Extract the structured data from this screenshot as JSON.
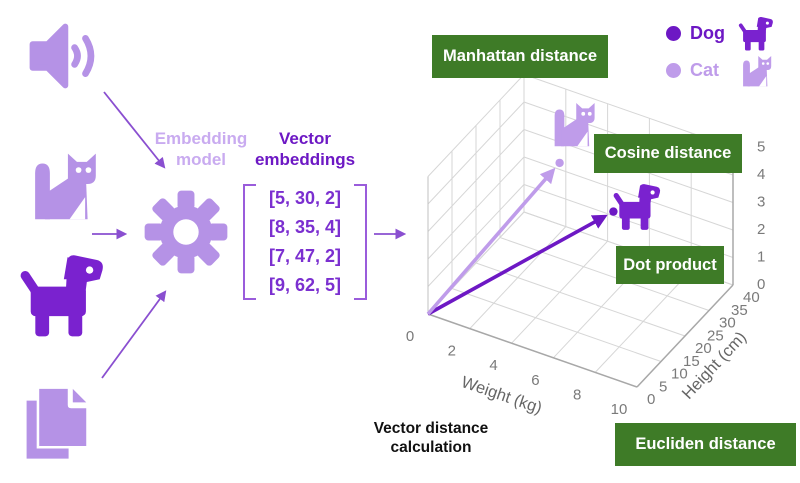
{
  "title": "Vector distance calculation",
  "pipeline": {
    "inputs": [
      {
        "name": "audio",
        "icon": "speaker-icon"
      },
      {
        "name": "cat",
        "icon": "cat-icon"
      },
      {
        "name": "dog",
        "icon": "dog-icon"
      },
      {
        "name": "documents",
        "icon": "documents-icon"
      }
    ],
    "embedding_model_label": "Embedding model",
    "embedding_model_icon": "gear-icon",
    "vector_embeddings_label": "Vector embeddings",
    "vectors": [
      "[5, 30, 2]",
      "[8, 35, 4]",
      "[7, 47, 2]",
      "[9, 62, 5]"
    ]
  },
  "distance_boxes": {
    "manhattan": "Manhattan distance",
    "cosine": "Cosine distance",
    "dot": "Dot product",
    "euclidean": "Eucliden distance"
  },
  "legend": [
    {
      "label": "Dog",
      "color": "#6d18c4",
      "icon": "dog-icon"
    },
    {
      "label": "Cat",
      "color": "#bf9cea",
      "icon": "cat-icon"
    }
  ],
  "chart_data": {
    "type": "scatter",
    "title": "",
    "xlabel": "Weight (kg)",
    "ylabel": "Height (cm)",
    "zlabel": "",
    "xlim": [
      0,
      10
    ],
    "ylim": [
      0,
      40
    ],
    "zlim": [
      0,
      5
    ],
    "x_ticks": [
      0,
      2,
      4,
      6,
      8,
      10
    ],
    "y_ticks": [
      0,
      5,
      10,
      15,
      20,
      25,
      30,
      35,
      40
    ],
    "z_ticks": [
      0,
      1,
      2,
      3,
      4,
      5
    ],
    "y_grid": [
      0,
      10,
      20,
      30,
      40
    ],
    "grid": true,
    "legend_position": "top-right",
    "series": [
      {
        "name": "Dog",
        "key": "dog",
        "color": "#6d18c4",
        "points": [
          [
            6,
            25,
            3
          ]
        ]
      },
      {
        "name": "Cat",
        "key": "cat",
        "color": "#bf9cea",
        "points": [
          [
            4,
            20,
            4.7
          ]
        ]
      }
    ]
  },
  "colors": {
    "purple_dark": "#6d18c4",
    "purple_icon": "#7a22cf",
    "purple_light": "#b592e6",
    "purple_lighter": "#bf9cea",
    "purple_pale_text": "#c9abf0",
    "arrow_purple": "#8a4fd0",
    "green": "#3e7b27",
    "grid": "#d6d6d6",
    "axis_edge": "#a8a8a8",
    "tick_text": "#7a7a7a",
    "axis_label_text": "#666666"
  }
}
